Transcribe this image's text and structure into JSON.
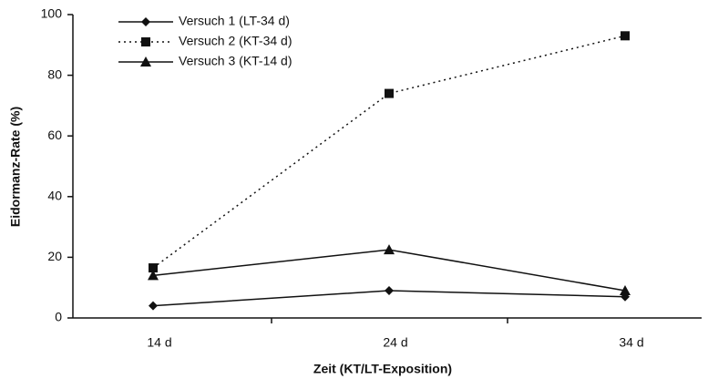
{
  "chart_data": {
    "type": "line",
    "x_label": "Zeit (KT/LT-Exposition)",
    "y_label": "Eidormanz-Rate (%)",
    "categories": [
      "14 d",
      "24 d",
      "34 d"
    ],
    "series": [
      {
        "name": "Versuch 1 (LT-34 d)",
        "color": "#111111",
        "line": "solid",
        "marker": "diamond",
        "values": [
          4,
          9,
          7
        ]
      },
      {
        "name": "Versuch 2 (KT-34 d)",
        "color": "#111111",
        "line": "dotted",
        "marker": "square",
        "values": [
          16.5,
          74,
          93
        ]
      },
      {
        "name": "Versuch 3 (KT-14 d)",
        "color": "#111111",
        "line": "solid",
        "marker": "triangle",
        "values": [
          14,
          22.5,
          9
        ]
      }
    ],
    "ylim": [
      0,
      100
    ],
    "yticks": [
      0,
      20,
      40,
      60,
      80,
      100
    ],
    "legend": "upper-left"
  }
}
